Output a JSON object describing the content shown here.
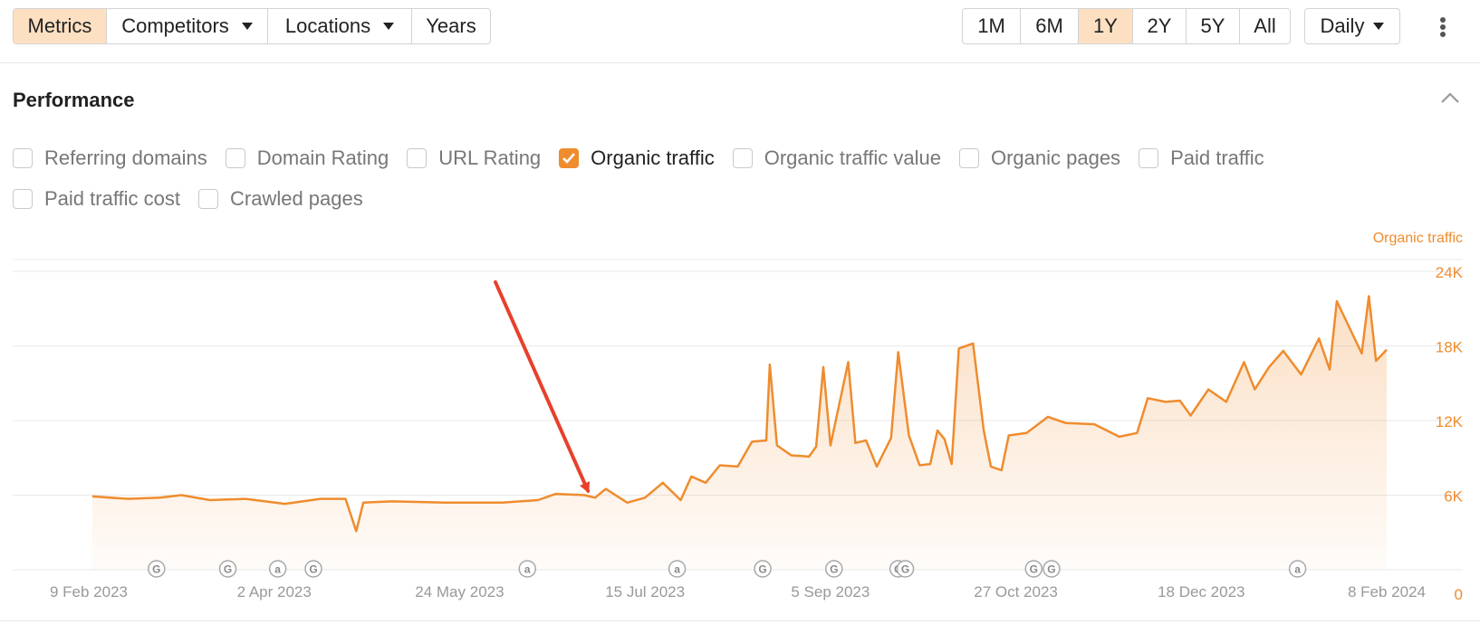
{
  "toolbar": {
    "view_tabs": [
      {
        "label": "Metrics",
        "active": true,
        "dropdown": false
      },
      {
        "label": "Competitors",
        "active": false,
        "dropdown": true
      },
      {
        "label": "Locations",
        "active": false,
        "dropdown": true
      },
      {
        "label": "Years",
        "active": false,
        "dropdown": false
      }
    ],
    "ranges": [
      {
        "label": "1M",
        "active": false
      },
      {
        "label": "6M",
        "active": false
      },
      {
        "label": "1Y",
        "active": true
      },
      {
        "label": "2Y",
        "active": false
      },
      {
        "label": "5Y",
        "active": false
      },
      {
        "label": "All",
        "active": false
      }
    ],
    "interval": "Daily",
    "more_icon": "kebab-menu-icon",
    "accent_color": "#fde0c2"
  },
  "section": {
    "title": "Performance",
    "collapse_icon": "chevron-up-icon"
  },
  "metrics_row1": [
    {
      "label": "Referring domains",
      "checked": false
    },
    {
      "label": "Domain Rating",
      "checked": false
    },
    {
      "label": "URL Rating",
      "checked": false
    },
    {
      "label": "Organic traffic",
      "checked": true
    },
    {
      "label": "Organic traffic value",
      "checked": false
    },
    {
      "label": "Organic pages",
      "checked": false
    },
    {
      "label": "Paid traffic",
      "checked": false
    }
  ],
  "metrics_row2": [
    {
      "label": "Paid traffic cost",
      "checked": false
    },
    {
      "label": "Crawled pages",
      "checked": false
    }
  ],
  "chart_data": {
    "type": "area",
    "series_label": "Organic traffic",
    "series_color": "#ef8c2e",
    "x_labels": [
      "9 Feb 2023",
      "2 Apr 2023",
      "24 May 2023",
      "15 Jul 2023",
      "5 Sep 2023",
      "27 Oct 2023",
      "18 Dec 2023",
      "8 Feb 2024"
    ],
    "y_ticks": [
      "0",
      "6K",
      "12K",
      "18K",
      "24K"
    ],
    "y_tick_values": [
      0,
      6000,
      12000,
      18000,
      24000
    ],
    "ylim": [
      0,
      24000
    ],
    "x_range": [
      "2023-02-09",
      "2024-02-08"
    ],
    "grid": true,
    "series": [
      {
        "name": "Organic traffic",
        "points": [
          [
            "2023-02-10",
            5900
          ],
          [
            "2023-02-20",
            5700
          ],
          [
            "2023-03-01",
            5800
          ],
          [
            "2023-03-07",
            6000
          ],
          [
            "2023-03-15",
            5600
          ],
          [
            "2023-03-25",
            5700
          ],
          [
            "2023-04-05",
            5300
          ],
          [
            "2023-04-15",
            5700
          ],
          [
            "2023-04-22",
            5700
          ],
          [
            "2023-04-25",
            3100
          ],
          [
            "2023-04-27",
            5400
          ],
          [
            "2023-05-05",
            5500
          ],
          [
            "2023-05-20",
            5400
          ],
          [
            "2023-06-05",
            5400
          ],
          [
            "2023-06-15",
            5600
          ],
          [
            "2023-06-20",
            6100
          ],
          [
            "2023-06-28",
            6000
          ],
          [
            "2023-07-01",
            5800
          ],
          [
            "2023-07-04",
            6500
          ],
          [
            "2023-07-10",
            5400
          ],
          [
            "2023-07-15",
            5800
          ],
          [
            "2023-07-20",
            7000
          ],
          [
            "2023-07-25",
            5600
          ],
          [
            "2023-07-28",
            7500
          ],
          [
            "2023-08-01",
            7000
          ],
          [
            "2023-08-05",
            8400
          ],
          [
            "2023-08-10",
            8300
          ],
          [
            "2023-08-14",
            10300
          ],
          [
            "2023-08-18",
            10400
          ],
          [
            "2023-08-19",
            16500
          ],
          [
            "2023-08-21",
            10000
          ],
          [
            "2023-08-25",
            9200
          ],
          [
            "2023-08-30",
            9100
          ],
          [
            "2023-09-01",
            9900
          ],
          [
            "2023-09-03",
            16300
          ],
          [
            "2023-09-05",
            10000
          ],
          [
            "2023-09-10",
            16700
          ],
          [
            "2023-09-12",
            10200
          ],
          [
            "2023-09-15",
            10400
          ],
          [
            "2023-09-18",
            8300
          ],
          [
            "2023-09-22",
            10600
          ],
          [
            "2023-09-24",
            17500
          ],
          [
            "2023-09-27",
            10800
          ],
          [
            "2023-09-30",
            8400
          ],
          [
            "2023-10-03",
            8500
          ],
          [
            "2023-10-05",
            11200
          ],
          [
            "2023-10-07",
            10500
          ],
          [
            "2023-10-09",
            8500
          ],
          [
            "2023-10-11",
            17800
          ],
          [
            "2023-10-15",
            18200
          ],
          [
            "2023-10-18",
            11200
          ],
          [
            "2023-10-20",
            8300
          ],
          [
            "2023-10-23",
            8000
          ],
          [
            "2023-10-25",
            10800
          ],
          [
            "2023-10-30",
            11000
          ],
          [
            "2023-11-05",
            12300
          ],
          [
            "2023-11-10",
            11800
          ],
          [
            "2023-11-18",
            11700
          ],
          [
            "2023-11-25",
            10700
          ],
          [
            "2023-11-30",
            11000
          ],
          [
            "2023-12-03",
            13800
          ],
          [
            "2023-12-08",
            13500
          ],
          [
            "2023-12-12",
            13600
          ],
          [
            "2023-12-15",
            12400
          ],
          [
            "2023-12-20",
            14500
          ],
          [
            "2023-12-25",
            13500
          ],
          [
            "2023-12-30",
            16700
          ],
          [
            "2024-01-02",
            14500
          ],
          [
            "2024-01-06",
            16300
          ],
          [
            "2024-01-10",
            17600
          ],
          [
            "2024-01-15",
            15700
          ],
          [
            "2024-01-20",
            18600
          ],
          [
            "2024-01-23",
            16100
          ],
          [
            "2024-01-25",
            21600
          ],
          [
            "2024-01-29",
            19200
          ],
          [
            "2024-02-01",
            17400
          ],
          [
            "2024-02-03",
            22000
          ],
          [
            "2024-02-05",
            16800
          ],
          [
            "2024-02-08",
            17700
          ]
        ]
      }
    ],
    "event_markers": [
      {
        "date": "2023-02-28",
        "letter": "G"
      },
      {
        "date": "2023-03-20",
        "letter": "G"
      },
      {
        "date": "2023-04-03",
        "letter": "a"
      },
      {
        "date": "2023-04-13",
        "letter": "G"
      },
      {
        "date": "2023-06-12",
        "letter": "a"
      },
      {
        "date": "2023-07-24",
        "letter": "a"
      },
      {
        "date": "2023-08-17",
        "letter": "G"
      },
      {
        "date": "2023-09-06",
        "letter": "G"
      },
      {
        "date": "2023-09-24",
        "letter": "G"
      },
      {
        "date": "2023-09-26",
        "letter": "G"
      },
      {
        "date": "2023-11-01",
        "letter": "G"
      },
      {
        "date": "2023-11-06",
        "letter": "G"
      },
      {
        "date": "2024-01-14",
        "letter": "a"
      }
    ],
    "annotation_arrow": {
      "color": "#e8402c",
      "points_to_date": "2023-06-29",
      "value": 6200
    }
  }
}
